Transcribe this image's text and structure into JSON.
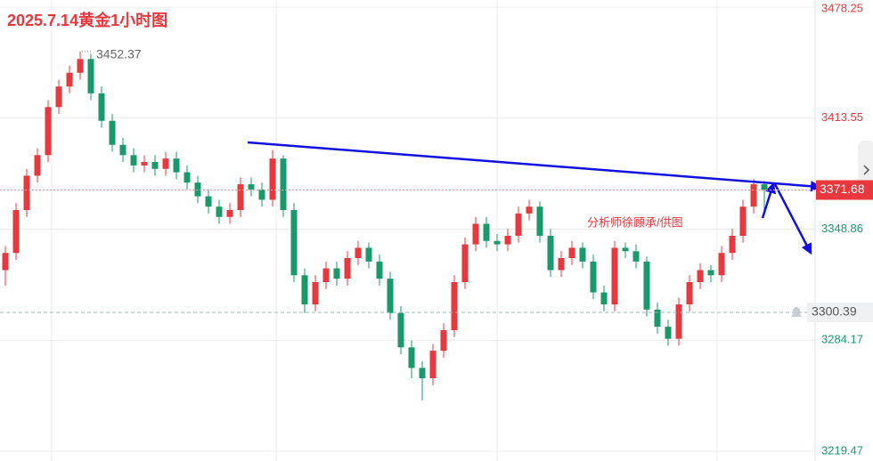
{
  "chart_data": {
    "type": "candlestick",
    "title": "2025.7.14黄金1小时图",
    "annotation": "分析师徐顾承/供图",
    "up_color": "#e8383d",
    "down_color": "#1a9a6a",
    "ylim": [
      3219.47,
      3478.25
    ],
    "yticks": [
      3478.25,
      3413.55,
      3348.86,
      3284.17,
      3219.47
    ],
    "grid": true,
    "last_price": 3371.68,
    "alert_price": 3300.39,
    "high_label": 3452.37,
    "series": [
      {
        "open": [
          3325,
          3335,
          3360,
          3380,
          3392,
          3420,
          3432,
          3440,
          3448,
          3428,
          3412,
          3398,
          3392,
          3386,
          3388,
          3384,
          3390,
          3382,
          3376,
          3368,
          3362,
          3356,
          3360,
          3375,
          3372,
          3366,
          3390,
          3360,
          3322,
          3305,
          3318,
          3326,
          3320,
          3332,
          3338,
          3330,
          3320,
          3300,
          3280,
          3268,
          3262,
          3278,
          3290,
          3318,
          3340,
          3352,
          3342,
          3340,
          3345,
          3358,
          3362,
          3345,
          3325,
          3332,
          3338,
          3330,
          3312,
          3305,
          3338,
          3336,
          3330,
          3302,
          3292,
          3285,
          3305,
          3318,
          3325,
          3322,
          3335,
          3345,
          3362,
          3375
        ],
        "high": [
          3339,
          3364,
          3384,
          3396,
          3424,
          3436,
          3444,
          3452.37,
          3451,
          3432,
          3416,
          3402,
          3396,
          3392,
          3392,
          3394,
          3394,
          3386,
          3380,
          3372,
          3366,
          3364,
          3379,
          3379,
          3376,
          3395,
          3392,
          3364,
          3326,
          3322,
          3330,
          3330,
          3336,
          3342,
          3341,
          3334,
          3324,
          3304,
          3284,
          3272,
          3282,
          3294,
          3322,
          3344,
          3356,
          3356,
          3346,
          3349,
          3362,
          3366,
          3365,
          3349,
          3336,
          3342,
          3341,
          3334,
          3316,
          3342,
          3341,
          3340,
          3333,
          3306,
          3296,
          3309,
          3322,
          3329,
          3328,
          3339,
          3349,
          3366,
          3378,
          3377
        ],
        "low": [
          3316,
          3331,
          3356,
          3376,
          3388,
          3416,
          3428,
          3436,
          3424,
          3408,
          3394,
          3388,
          3382,
          3382,
          3380,
          3380,
          3378,
          3372,
          3364,
          3358,
          3352,
          3352,
          3356,
          3368,
          3362,
          3362,
          3356,
          3318,
          3300,
          3301,
          3314,
          3316,
          3316,
          3328,
          3326,
          3316,
          3296,
          3276,
          3262,
          3249,
          3258,
          3274,
          3286,
          3314,
          3336,
          3338,
          3336,
          3336,
          3341,
          3354,
          3341,
          3321,
          3321,
          3328,
          3326,
          3308,
          3301,
          3301,
          3332,
          3326,
          3298,
          3288,
          3281,
          3281,
          3301,
          3314,
          3318,
          3318,
          3331,
          3341,
          3358,
          3358
        ],
        "close": [
          3335,
          3360,
          3380,
          3392,
          3420,
          3432,
          3440,
          3448,
          3428,
          3412,
          3398,
          3392,
          3386,
          3388,
          3384,
          3390,
          3382,
          3376,
          3368,
          3362,
          3356,
          3360,
          3375,
          3372,
          3366,
          3390,
          3360,
          3322,
          3305,
          3318,
          3326,
          3320,
          3332,
          3338,
          3330,
          3320,
          3300,
          3280,
          3268,
          3262,
          3278,
          3290,
          3318,
          3340,
          3352,
          3342,
          3340,
          3345,
          3358,
          3362,
          3345,
          3325,
          3332,
          3338,
          3330,
          3312,
          3305,
          3338,
          3336,
          3330,
          3302,
          3292,
          3285,
          3305,
          3318,
          3325,
          3322,
          3335,
          3345,
          3362,
          3375,
          3371.68
        ]
      }
    ]
  }
}
